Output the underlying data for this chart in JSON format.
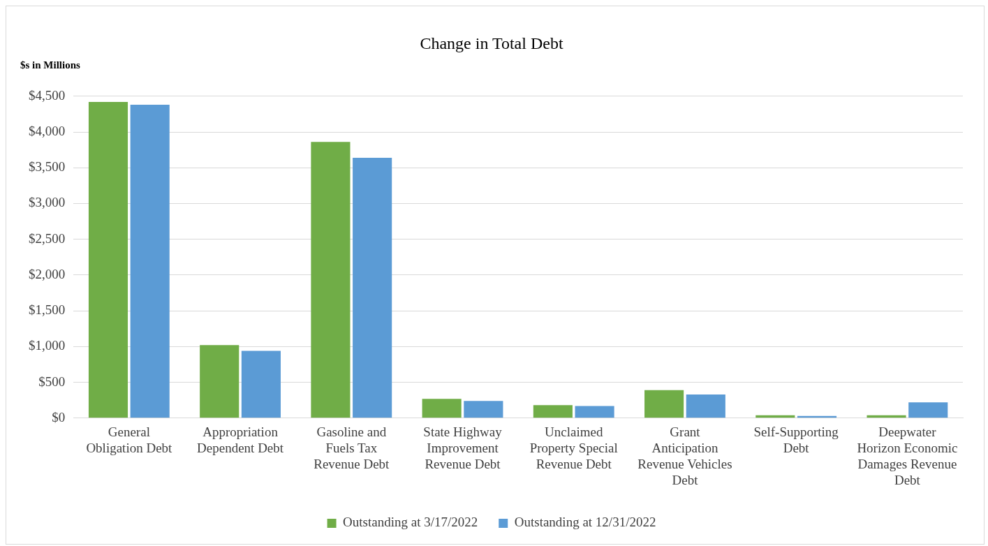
{
  "chart_data": {
    "type": "bar",
    "title": "Change in Total Debt",
    "ylabel": "$s in Millions",
    "categories": [
      "General Obligation Debt",
      "Appropriation Dependent Debt",
      "Gasoline and Fuels Tax Revenue Debt",
      "State Highway Improvement Revenue Debt",
      "Unclaimed Property Special Revenue Debt",
      "Grant Anticipation Revenue Vehicles Debt",
      "Self-Supporting Debt",
      "Deepwater Horizon Economic Damages Revenue Debt"
    ],
    "series": [
      {
        "name": "Outstanding at 3/17/2022",
        "color": "#70ad47",
        "values": [
          4420,
          1020,
          3860,
          270,
          180,
          390,
          40,
          40
        ]
      },
      {
        "name": "Outstanding at 12/31/2022",
        "color": "#5b9bd5",
        "values": [
          4380,
          940,
          3640,
          240,
          170,
          330,
          30,
          220
        ]
      }
    ],
    "ylim": [
      0,
      4500
    ],
    "yticks": [
      {
        "value": 0,
        "label": "$0"
      },
      {
        "value": 500,
        "label": "$500"
      },
      {
        "value": 1000,
        "label": "$1,000"
      },
      {
        "value": 1500,
        "label": "$1,500"
      },
      {
        "value": 2000,
        "label": "$2,000"
      },
      {
        "value": 2500,
        "label": "$2,500"
      },
      {
        "value": 3000,
        "label": "$3,000"
      },
      {
        "value": 3500,
        "label": "$3,500"
      },
      {
        "value": 4000,
        "label": "$4,000"
      },
      {
        "value": 4500,
        "label": "$4,500"
      }
    ],
    "grid": "y",
    "legend": "bottom"
  }
}
